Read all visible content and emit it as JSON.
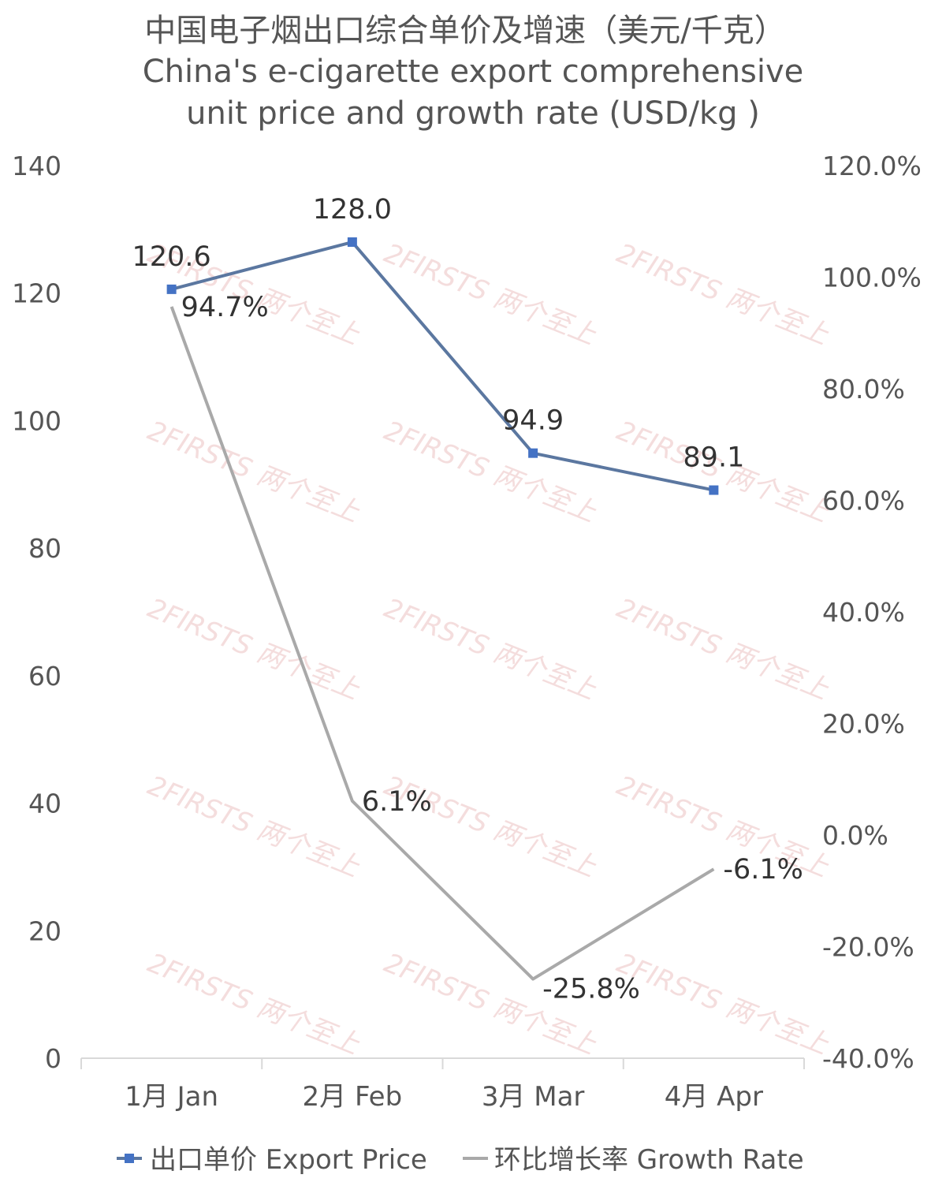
{
  "chart_data": {
    "type": "line",
    "title_cn": "中国电子烟出口综合单价及增速（美元/千克）",
    "title_en_line1": "China's e-cigarette export comprehensive",
    "title_en_line2": "unit price and growth rate (USD/kg )",
    "categories": [
      "1月 Jan",
      "2月 Feb",
      "3月 Mar",
      "4月 Apr"
    ],
    "left_axis": {
      "ylim": [
        0,
        140
      ],
      "ticks": [
        "0",
        "20",
        "40",
        "60",
        "80",
        "100",
        "120",
        "140"
      ]
    },
    "right_axis": {
      "ylim": [
        -40,
        120
      ],
      "ticks": [
        "-40.0%",
        "-20.0%",
        "0.0%",
        "20.0%",
        "40.0%",
        "60.0%",
        "80.0%",
        "100.0%",
        "120.0%"
      ]
    },
    "series": [
      {
        "name": "出口单价 Export Price",
        "axis": "left",
        "color": "#5b77a0",
        "marker_color": "#4472c4",
        "values": [
          120.6,
          128.0,
          94.9,
          89.1
        ],
        "labels": [
          "120.6",
          "128.0",
          "94.9",
          "89.1"
        ]
      },
      {
        "name": "环比增长率 Growth Rate",
        "axis": "right",
        "color": "#a9a9a9",
        "values": [
          94.7,
          6.1,
          -25.8,
          -6.1
        ],
        "labels": [
          "94.7%",
          "6.1%",
          "-25.8%",
          "-6.1%"
        ]
      }
    ],
    "grid": false,
    "legend_position": "bottom"
  },
  "watermark": "2FIRSTS 两个至上"
}
